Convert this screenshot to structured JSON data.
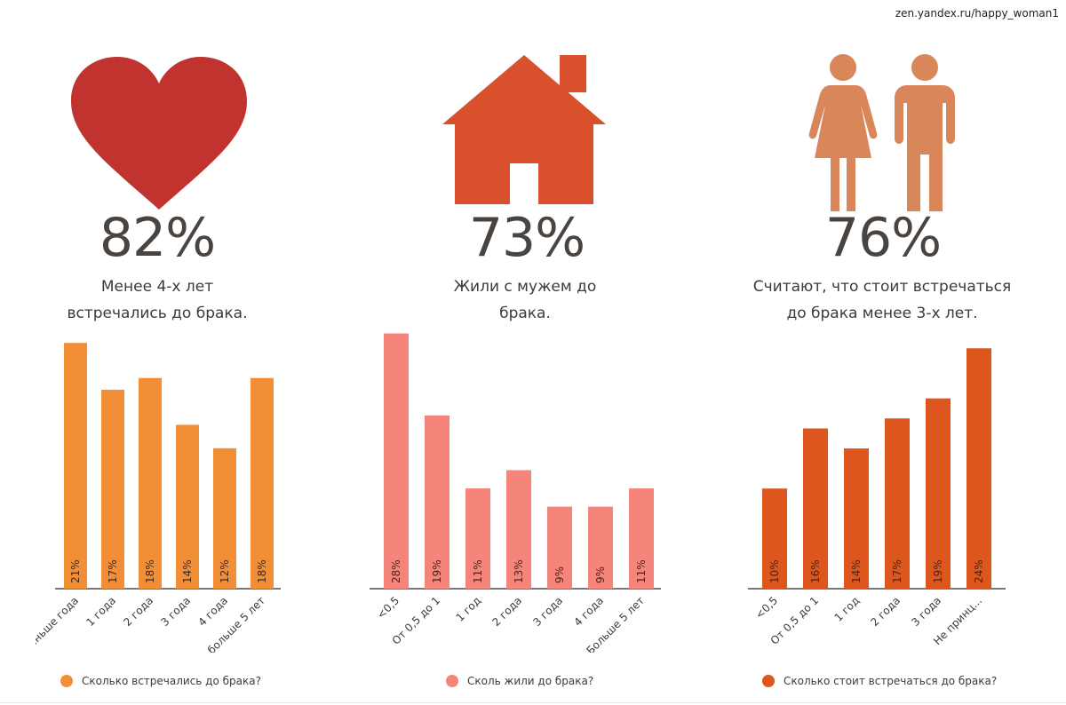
{
  "source": "zen.yandex.ru/happy_woman1",
  "panels": [
    {
      "stat": "82%",
      "caption_line1": "Менее 4-х лет",
      "caption_line2": "встречались до брака.",
      "icon": "heart-icon",
      "icon_color": "#c0332e",
      "legend": "Сколько встречались до брака?"
    },
    {
      "stat": "73%",
      "caption_line1": "Жили с мужем до",
      "caption_line2": "брака.",
      "icon": "house-icon",
      "icon_color": "#d9512c",
      "legend": "Сколь жили до брака?"
    },
    {
      "stat": "76%",
      "caption_line1": "Считают, что стоит встречаться",
      "caption_line2": "до брака менее 3-х лет.",
      "icon": "couple-icon",
      "icon_color": "#d9875a",
      "legend": "Сколько стоит встречаться до брака?"
    }
  ],
  "chart_data": [
    {
      "type": "bar",
      "categories": [
        "Меньше года",
        "1 года",
        "2 года",
        "3 года",
        "4 года",
        "больше 5 лет"
      ],
      "values": [
        21,
        17,
        18,
        14,
        12,
        18
      ],
      "labels": [
        "21%",
        "17%",
        "18%",
        "14%",
        "12%",
        "18%"
      ],
      "color": "#f28f36",
      "legend": "Сколько встречались до брака?",
      "ylim": [
        0,
        22
      ]
    },
    {
      "type": "bar",
      "categories": [
        "<0,5",
        "От 0,5 до 1",
        "1 год",
        "2 года",
        "3 года",
        "4 года",
        "Больше 5 лет"
      ],
      "values": [
        28,
        19,
        11,
        13,
        9,
        9,
        11
      ],
      "labels": [
        "28%",
        "19%",
        "11%",
        "13%",
        "9%",
        "9%",
        "11%"
      ],
      "color": "#f5857a",
      "legend": "Сколь жили до брака?",
      "ylim": [
        0,
        30
      ]
    },
    {
      "type": "bar",
      "categories": [
        "<0,5",
        "От 0,5 до 1",
        "1 год",
        "2 года",
        "3 года",
        "Не принц..."
      ],
      "values": [
        10,
        16,
        14,
        17,
        19,
        24
      ],
      "labels": [
        "10%",
        "16%",
        "14%",
        "17%",
        "19%",
        "24%"
      ],
      "color": "#dd561e",
      "legend": "Сколько стоит встречаться до брака?",
      "ylim": [
        0,
        25
      ]
    }
  ]
}
